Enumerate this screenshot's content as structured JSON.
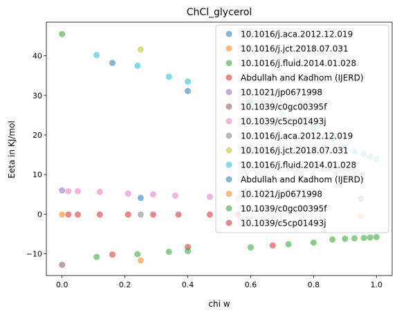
{
  "chart_data": {
    "type": "scatter",
    "title": "ChCl_glycerol",
    "xlabel": "chi w",
    "ylabel": "Eeta in KJ/mol",
    "xlim": [
      -0.05,
      1.05
    ],
    "ylim": [
      -15.5,
      48.5
    ],
    "xticks": [
      0.0,
      0.2,
      0.4,
      0.6,
      0.8,
      1.0
    ],
    "xtick_labels": [
      "0.0",
      "0.2",
      "0.4",
      "0.6",
      "0.8",
      "1.0"
    ],
    "yticks": [
      -10,
      0,
      10,
      20,
      30,
      40
    ],
    "ytick_labels": [
      "−10",
      "0",
      "10",
      "20",
      "30",
      "40"
    ],
    "legend_position": "top-right",
    "series": [
      {
        "name": "10.1016/j.aca.2012.12.019",
        "color": "#1f77b4",
        "points": [
          [
            0.16,
            38.2
          ],
          [
            0.4,
            31.1
          ],
          [
            0.25,
            4.1
          ],
          [
            0.95,
            3.9
          ]
        ]
      },
      {
        "name": "10.1016/j.jct.2018.07.031",
        "color": "#ff7f0e",
        "points": [
          [
            0.0,
            -0.1
          ],
          [
            0.25,
            -11.7
          ],
          [
            0.95,
            -0.5
          ]
        ]
      },
      {
        "name": "10.1016/j.fluid.2014.01.028",
        "color": "#2ca02c",
        "points": [
          [
            0.0,
            45.5
          ]
        ]
      },
      {
        "name": "Abdullah and Kadhom (IJERD)",
        "color": "#d62728",
        "points": [
          [
            0.02,
            -0.1
          ],
          [
            0.05,
            -0.1
          ],
          [
            0.12,
            -0.1
          ],
          [
            0.21,
            -0.1
          ],
          [
            0.29,
            -0.1
          ],
          [
            0.37,
            -0.1
          ],
          [
            0.47,
            -0.1
          ],
          [
            0.56,
            -0.1
          ],
          [
            0.16,
            -10.2
          ],
          [
            0.4,
            -8.3
          ],
          [
            0.67,
            -7.9
          ]
        ]
      },
      {
        "name": "10.1021/jp0671998",
        "color": "#9467bd",
        "points": [
          [
            0.0,
            6.0
          ]
        ]
      },
      {
        "name": "10.1039/c0gc00395f",
        "color": "#8c564b",
        "points": [
          [
            0.0,
            -12.8
          ]
        ]
      },
      {
        "name": "10.1039/c5cp01493j",
        "color": "#e377c2",
        "points": [
          [
            0.02,
            5.8
          ],
          [
            0.05,
            5.8
          ],
          [
            0.12,
            5.6
          ],
          [
            0.21,
            5.2
          ],
          [
            0.29,
            5.0
          ],
          [
            0.36,
            4.7
          ],
          [
            0.47,
            4.4
          ],
          [
            0.56,
            4.0
          ]
        ]
      },
      {
        "name": "10.1016/j.aca.2012.12.019",
        "color": "#7f7f7f",
        "points": [
          [
            0.25,
            -0.1
          ]
        ]
      },
      {
        "name": "10.1016/j.jct.2018.07.031",
        "color": "#bcbd22",
        "points": [
          [
            0.25,
            41.6
          ]
        ]
      },
      {
        "name": "10.1016/j.fluid.2014.01.028",
        "color": "#17becf",
        "points": [
          [
            0.11,
            40.2
          ],
          [
            0.24,
            37.5
          ],
          [
            0.34,
            34.7
          ],
          [
            0.4,
            33.5
          ],
          [
            0.6,
            28.5
          ],
          [
            0.7,
            25.5
          ],
          [
            0.8,
            21.8
          ],
          [
            0.86,
            19.2
          ],
          [
            0.9,
            17.0
          ],
          [
            0.93,
            15.8
          ],
          [
            0.96,
            15.2
          ],
          [
            0.98,
            14.6
          ],
          [
            1.0,
            14.0
          ]
        ]
      },
      {
        "name": "Abdullah and Kadhom (IJERD)",
        "color": "#1f77b4",
        "points": []
      },
      {
        "name": "10.1021/jp0671998",
        "color": "#ff7f0e",
        "points": []
      },
      {
        "name": "10.1039/c0gc00395f",
        "color": "#2ca02c",
        "points": [
          [
            0.11,
            -10.8
          ],
          [
            0.24,
            -10.1
          ],
          [
            0.34,
            -9.5
          ],
          [
            0.4,
            -9.3
          ],
          [
            0.6,
            -8.4
          ],
          [
            0.72,
            -7.6
          ],
          [
            0.8,
            -7.2
          ],
          [
            0.86,
            -6.4
          ],
          [
            0.9,
            -6.2
          ],
          [
            0.93,
            -6.1
          ],
          [
            0.96,
            -6.0
          ],
          [
            0.98,
            -5.9
          ],
          [
            1.0,
            -5.8
          ]
        ]
      },
      {
        "name": "10.1039/c5cp01493j",
        "color": "#d62728",
        "points": []
      }
    ]
  }
}
